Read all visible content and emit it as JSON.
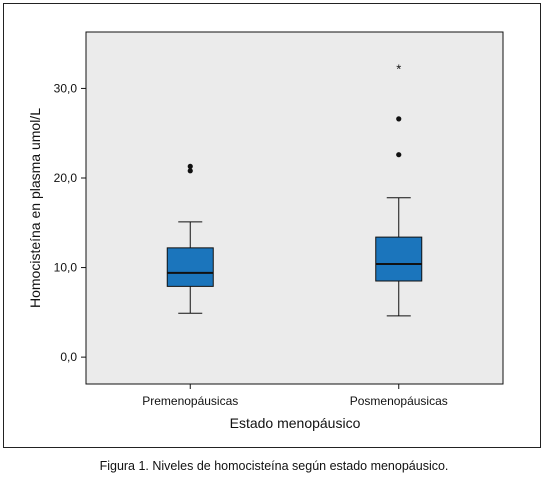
{
  "chart_data": {
    "type": "box",
    "xlabel": "Estado menopáusico",
    "ylabel": "Homocisteína en plasma umol/L",
    "ylim": [
      -3.0,
      36.3
    ],
    "yticks": [
      {
        "value": 0,
        "label": "0,0"
      },
      {
        "value": 10,
        "label": "10,0"
      },
      {
        "value": 20,
        "label": "20,0"
      },
      {
        "value": 30,
        "label": "30,0"
      }
    ],
    "categories": [
      "Premenopáusicas",
      "Posmenopáusicas"
    ],
    "boxes": [
      {
        "category": "Premenopáusicas",
        "whisker_low": 4.9,
        "q1": 7.9,
        "median": 9.4,
        "q3": 12.2,
        "whisker_high": 15.1,
        "outliers": [
          20.8,
          21.3
        ],
        "extremes": []
      },
      {
        "category": "Posmenopáusicas",
        "whisker_low": 4.6,
        "q1": 8.5,
        "median": 10.4,
        "q3": 13.4,
        "whisker_high": 17.8,
        "outliers": [
          22.6,
          26.6
        ],
        "extremes": [
          32.2
        ]
      }
    ],
    "grid": false,
    "colors": {
      "box_fill": "#1B75BC",
      "plot_bg": "#EBEBEB",
      "line": "#111111"
    }
  },
  "caption": "Figura 1. Niveles de homocisteína según estado menopáusico."
}
